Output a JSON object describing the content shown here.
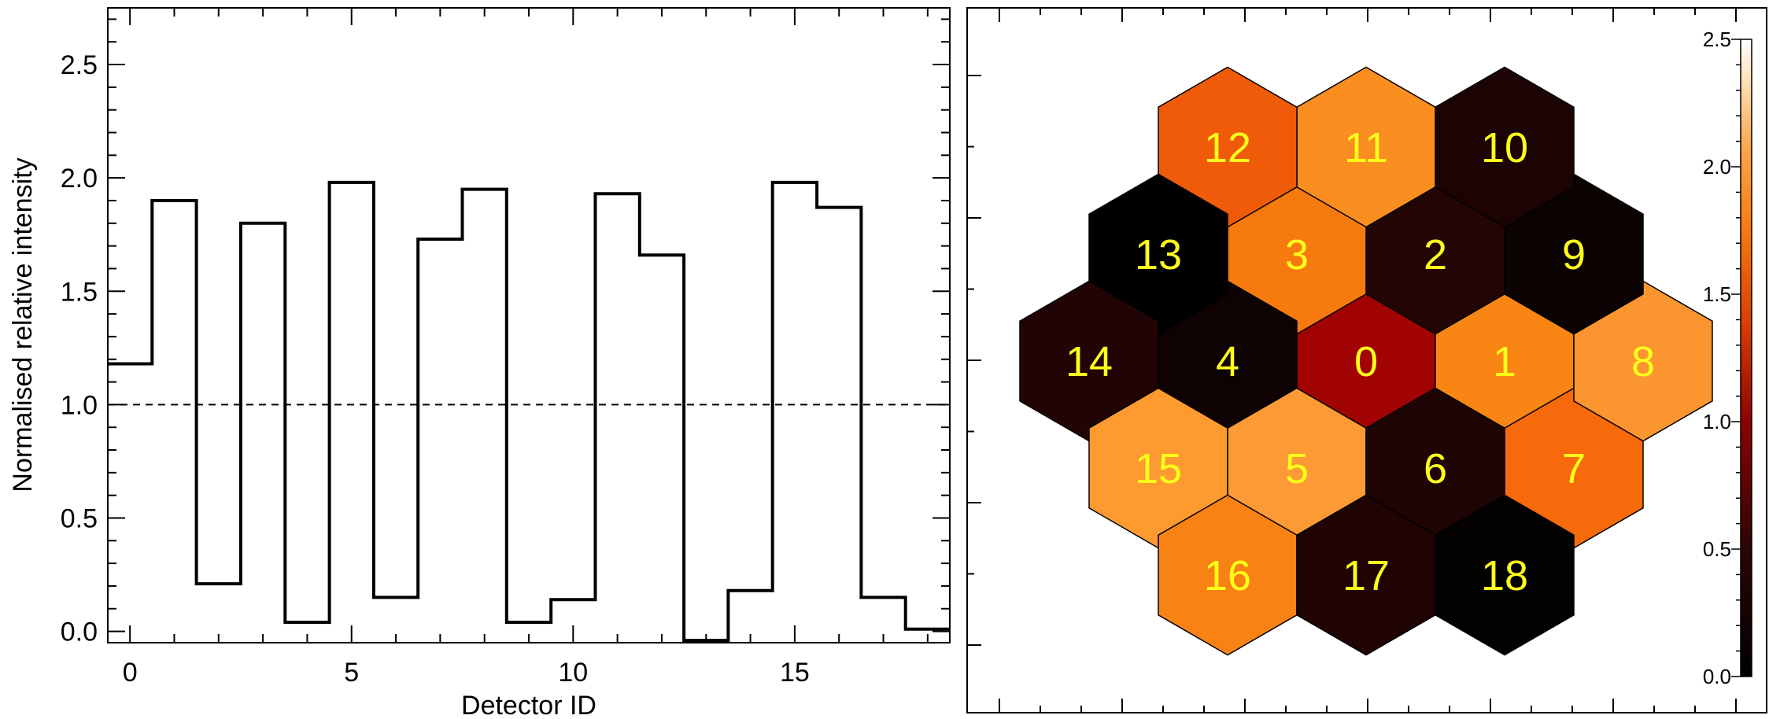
{
  "chart_data": [
    {
      "type": "step",
      "xlabel": "Detector ID",
      "ylabel": "Normalised relative intensity",
      "xlim": [
        -0.5,
        18.5
      ],
      "ylim": [
        -0.05,
        2.75
      ],
      "xticks": [
        0,
        5,
        10,
        15
      ],
      "yticks": [
        0.0,
        0.5,
        1.0,
        1.5,
        2.0,
        2.5
      ],
      "ytick_labels": [
        "0.0",
        "0.5",
        "1.0",
        "1.5",
        "2.0",
        "2.5"
      ],
      "reference_line": 1.0,
      "x": [
        0,
        1,
        2,
        3,
        4,
        5,
        6,
        7,
        8,
        9,
        10,
        11,
        12,
        13,
        14,
        15,
        16,
        17,
        18
      ],
      "values": [
        1.18,
        1.9,
        0.21,
        1.8,
        0.04,
        1.98,
        0.15,
        1.73,
        1.95,
        0.04,
        0.14,
        1.93,
        1.66,
        -0.04,
        0.18,
        1.98,
        1.87,
        0.15,
        0.01
      ]
    },
    {
      "type": "heatmap",
      "layout": "hexagonal",
      "colorbar": {
        "colormap": "black-red-orange-white",
        "range": [
          0.0,
          2.5
        ],
        "tick_values": [
          0.0,
          0.5,
          1.0,
          1.5,
          2.0,
          2.5
        ],
        "tick_labels": [
          "0.0",
          "0.5",
          "1.0",
          "1.5",
          "2.0",
          "2.5"
        ]
      },
      "cells": [
        {
          "id": "0",
          "value": 1.18,
          "color": "#a10303"
        },
        {
          "id": "1",
          "value": 1.9,
          "color": "#f98614"
        },
        {
          "id": "2",
          "value": 0.21,
          "color": "#240505"
        },
        {
          "id": "3",
          "value": 1.8,
          "color": "#f77a0e"
        },
        {
          "id": "4",
          "value": 0.04,
          "color": "#0e0202"
        },
        {
          "id": "5",
          "value": 1.98,
          "color": "#fd9a35"
        },
        {
          "id": "6",
          "value": 0.15,
          "color": "#1f0404"
        },
        {
          "id": "7",
          "value": 1.73,
          "color": "#f76a0b"
        },
        {
          "id": "8",
          "value": 1.95,
          "color": "#fb9530"
        },
        {
          "id": "9",
          "value": 0.04,
          "color": "#0b0202"
        },
        {
          "id": "10",
          "value": 0.14,
          "color": "#1c0404"
        },
        {
          "id": "11",
          "value": 1.93,
          "color": "#fa8e20"
        },
        {
          "id": "12",
          "value": 1.66,
          "color": "#ef5b08"
        },
        {
          "id": "13",
          "value": -0.04,
          "color": "#000000"
        },
        {
          "id": "14",
          "value": 0.18,
          "color": "#220404"
        },
        {
          "id": "15",
          "value": 1.98,
          "color": "#fd9a30"
        },
        {
          "id": "16",
          "value": 1.87,
          "color": "#f88314"
        },
        {
          "id": "17",
          "value": 0.15,
          "color": "#200404"
        },
        {
          "id": "18",
          "value": 0.01,
          "color": "#040101"
        }
      ],
      "label_color": "#ffff1a"
    }
  ]
}
